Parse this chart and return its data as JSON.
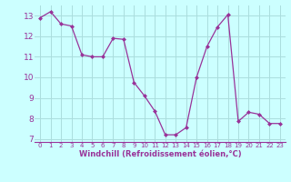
{
  "x": [
    0,
    1,
    2,
    3,
    4,
    5,
    6,
    7,
    8,
    9,
    10,
    11,
    12,
    13,
    14,
    15,
    16,
    17,
    18,
    19,
    20,
    21,
    22,
    23
  ],
  "y": [
    12.9,
    13.2,
    12.6,
    12.5,
    11.1,
    11.0,
    11.0,
    11.9,
    11.85,
    9.75,
    9.1,
    8.35,
    7.2,
    7.2,
    7.55,
    10.0,
    11.5,
    12.45,
    13.05,
    7.85,
    8.3,
    8.2,
    7.75,
    7.75
  ],
  "line_color": "#993399",
  "marker": "D",
  "marker_size": 2.0,
  "bg_color": "#ccffff",
  "grid_color": "#aadddd",
  "xlabel": "Windchill (Refroidissement éolien,°C)",
  "xlabel_color": "#993399",
  "tick_color": "#993399",
  "ylim": [
    6.85,
    13.5
  ],
  "xlim": [
    -0.5,
    23.5
  ],
  "yticks": [
    7,
    8,
    9,
    10,
    11,
    12,
    13
  ],
  "xticks": [
    0,
    1,
    2,
    3,
    4,
    5,
    6,
    7,
    8,
    9,
    10,
    11,
    12,
    13,
    14,
    15,
    16,
    17,
    18,
    19,
    20,
    21,
    22,
    23
  ],
  "ytick_fontsize": 6.5,
  "xtick_fontsize": 5.0,
  "xlabel_fontsize": 6.0
}
